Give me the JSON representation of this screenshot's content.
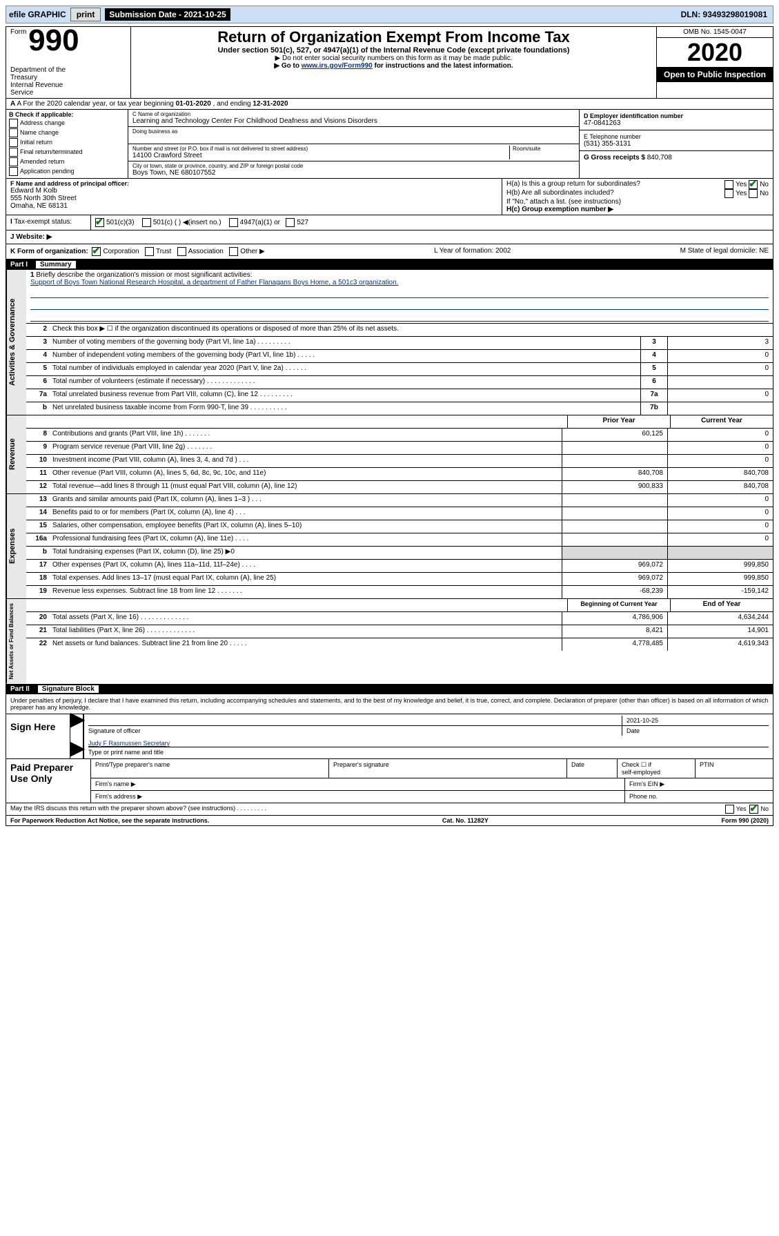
{
  "topbar": {
    "efile": "efile GRAPHIC",
    "print": "print",
    "sub_date_label": "Submission Date - 2021-10-25",
    "dln": "DLN: 93493298019081"
  },
  "header": {
    "form_word": "Form",
    "form_no": "990",
    "dept": "Department of the Treasury\nInternal Revenue Service",
    "title": "Return of Organization Exempt From Income Tax",
    "sub": "Under section 501(c), 527, or 4947(a)(1) of the Internal Revenue Code (except private foundations)",
    "sub2a": "▶ Do not enter social security numbers on this form as it may be made public.",
    "sub2b_pre": "▶ Go to ",
    "sub2b_link": "www.irs.gov/Form990",
    "sub2b_post": " for instructions and the latest information.",
    "omb": "OMB No. 1545-0047",
    "year": "2020",
    "open": "Open to Public Inspection"
  },
  "rowA": {
    "text_pre": "A  For the 2020 calendar year, or tax year beginning ",
    "begin": "01-01-2020",
    "mid": "   , and ending ",
    "end": "12-31-2020"
  },
  "colB": {
    "hdr": "B Check if applicable:",
    "items": [
      "Address change",
      "Name change",
      "Initial return",
      "Final return/terminated",
      "Amended return",
      "Application pending"
    ]
  },
  "boxC": {
    "lbl_name": "C Name of organization",
    "name": "Learning and Technology Center For Childhood Deafness and Visions Disorders",
    "dba_lbl": "Doing business as",
    "lbl_addr": "Number and street (or P.O. box if mail is not delivered to street address)",
    "room_lbl": "Room/suite",
    "addr": "14100 Crawford Street",
    "lbl_city": "City or town, state or province, country, and ZIP or foreign postal code",
    "city": "Boys Town, NE  680107552"
  },
  "boxD": {
    "lbl": "D Employer identification number",
    "val": "47-0841263"
  },
  "boxE": {
    "lbl": "E Telephone number",
    "val": "(531) 355-3131"
  },
  "boxG": {
    "lbl": "G Gross receipts $",
    "val": "840,708"
  },
  "boxF": {
    "lbl": "F  Name and address of principal officer:",
    "name": "Edward M Kolb",
    "addr1": "555 North 30th Street",
    "addr2": "Omaha, NE  68131"
  },
  "boxH": {
    "a": "H(a)  Is this a group return for subordinates?",
    "b": "H(b)  Are all subordinates included?",
    "note": "If \"No,\" attach a list. (see instructions)",
    "c": "H(c)  Group exemption number ▶"
  },
  "rowI": {
    "lbl": "Tax-exempt status:",
    "opts": [
      "501(c)(3)",
      "501(c) (  ) ◀(insert no.)",
      "4947(a)(1) or",
      "527"
    ]
  },
  "rowJ": {
    "lbl": "J   Website: ▶"
  },
  "rowK": {
    "lbl": "K Form of organization:",
    "opts": [
      "Corporation",
      "Trust",
      "Association",
      "Other ▶"
    ],
    "L": "L Year of formation: 2002",
    "M": "M State of legal domicile: NE"
  },
  "part1": {
    "num": "Part I",
    "title": "Summary"
  },
  "mission": {
    "num": "1",
    "lbl": "Briefly describe the organization's mission or most significant activities:",
    "text": "Support of Boys Town National Research Hospital, a department of Father Flanagans Boys Home, a 501c3 organization."
  },
  "lines_top": [
    {
      "n": "2",
      "t": "Check this box ▶ ☐  if the organization discontinued its operations or disposed of more than 25% of its net assets."
    },
    {
      "n": "3",
      "t": "Number of voting members of the governing body (Part VI, line 1a)   .    .    .    .    .    .    .    .    .",
      "r": "3",
      "v": "3"
    },
    {
      "n": "4",
      "t": "Number of independent voting members of the governing body (Part VI, line 1b)    .    .    .    .    .",
      "r": "4",
      "v": "0"
    },
    {
      "n": "5",
      "t": "Total number of individuals employed in calendar year 2020 (Part V, line 2a)   .    .    .    .    .    .",
      "r": "5",
      "v": "0"
    },
    {
      "n": "6",
      "t": "Total number of volunteers (estimate if necessary)    .    .    .    .    .    .    .    .    .    .    .    .    .",
      "r": "6",
      "v": ""
    },
    {
      "n": "7a",
      "t": "Total unrelated business revenue from Part VIII, column (C), line 12   .    .    .    .    .    .    .    .    .",
      "r": "7a",
      "v": "0"
    },
    {
      "n": "b",
      "t": "Net unrelated business taxable income from Form 990-T, line 39   .    .    .    .    .    .    .    .    .    .",
      "r": "7b",
      "v": ""
    }
  ],
  "col_hdrs": {
    "prior": "Prior Year",
    "current": "Current Year"
  },
  "revenue": [
    {
      "n": "8",
      "t": "Contributions and grants (Part VIII, line 1h)   .    .    .    .    .    .    .",
      "p": "60,125",
      "c": "0"
    },
    {
      "n": "9",
      "t": "Program service revenue (Part VIII, line 2g)    .    .    .    .    .    .    .",
      "p": "",
      "c": "0"
    },
    {
      "n": "10",
      "t": "Investment income (Part VIII, column (A), lines 3, 4, and 7d )   .    .    .",
      "p": "",
      "c": "0"
    },
    {
      "n": "11",
      "t": "Other revenue (Part VIII, column (A), lines 5, 6d, 8c, 9c, 10c, and 11e)",
      "p": "840,708",
      "c": "840,708"
    },
    {
      "n": "12",
      "t": "Total revenue—add lines 8 through 11 (must equal Part VIII, column (A), line 12)",
      "p": "900,833",
      "c": "840,708"
    }
  ],
  "expenses": [
    {
      "n": "13",
      "t": "Grants and similar amounts paid (Part IX, column (A), lines 1–3 )   .    .    .",
      "p": "",
      "c": "0"
    },
    {
      "n": "14",
      "t": "Benefits paid to or for members (Part IX, column (A), line 4)   .    .    .",
      "p": "",
      "c": "0"
    },
    {
      "n": "15",
      "t": "Salaries, other compensation, employee benefits (Part IX, column (A), lines 5–10)",
      "p": "",
      "c": "0"
    },
    {
      "n": "16a",
      "t": "Professional fundraising fees (Part IX, column (A), line 11e)   .    .    .    .",
      "p": "",
      "c": "0"
    },
    {
      "n": "b",
      "t": "Total fundraising expenses (Part IX, column (D), line 25) ▶0",
      "p": "shade",
      "c": "shade"
    },
    {
      "n": "17",
      "t": "Other expenses (Part IX, column (A), lines 11a–11d, 11f–24e)   .    .    .    .",
      "p": "969,072",
      "c": "999,850"
    },
    {
      "n": "18",
      "t": "Total expenses. Add lines 13–17 (must equal Part IX, column (A), line 25)",
      "p": "969,072",
      "c": "999,850"
    },
    {
      "n": "19",
      "t": "Revenue less expenses. Subtract line 18 from line 12   .    .    .    .    .    .    .",
      "p": "-68,239",
      "c": "-159,142"
    }
  ],
  "net_hdrs": {
    "b": "Beginning of Current Year",
    "e": "End of Year"
  },
  "net": [
    {
      "n": "20",
      "t": "Total assets (Part X, line 16)   .    .    .    .    .    .    .    .    .    .    .    .    .",
      "p": "4,786,906",
      "c": "4,634,244"
    },
    {
      "n": "21",
      "t": "Total liabilities (Part X, line 26)   .    .    .    .    .    .    .    .    .    .    .    .    .",
      "p": "8,421",
      "c": "14,901"
    },
    {
      "n": "22",
      "t": "Net assets or fund balances. Subtract line 21 from line 20   .    .    .    .    .",
      "p": "4,778,485",
      "c": "4,619,343"
    }
  ],
  "part2": {
    "num": "Part II",
    "title": "Signature Block"
  },
  "penalties": "Under penalties of perjury, I declare that I have examined this return, including accompanying schedules and statements, and to the best of my knowledge and belief, it is true, correct, and complete. Declaration of preparer (other than officer) is based on all information of which preparer has any knowledge.",
  "sign": {
    "here": "Sign Here",
    "sig_lbl": "Signature of officer",
    "date_lbl": "Date",
    "date": "2021-10-25",
    "name": "Judy F Rasmussen  Secretary",
    "name_lbl": "Type or print name and title"
  },
  "paid": {
    "hdr": "Paid Preparer Use Only",
    "c1": "Print/Type preparer's name",
    "c2": "Preparer's signature",
    "c3": "Date",
    "c4a": "Check ☐ if",
    "c4b": "self-employed",
    "c5": "PTIN",
    "r2a": "Firm's name    ▶",
    "r2b": "Firm's EIN ▶",
    "r3a": "Firm's address ▶",
    "r3b": "Phone no."
  },
  "discuss": {
    "t": "May the IRS discuss this return with the preparer shown above? (see instructions)    .    .    .    .    .    .    .    .    .",
    "yes": "Yes",
    "no": "No"
  },
  "footer": {
    "l": "For Paperwork Reduction Act Notice, see the separate instructions.",
    "c": "Cat. No. 11282Y",
    "r": "Form 990 (2020)"
  },
  "vtabs": {
    "ag": "Activities & Governance",
    "rev": "Revenue",
    "exp": "Expenses",
    "net": "Net Assets or Fund Balances"
  }
}
